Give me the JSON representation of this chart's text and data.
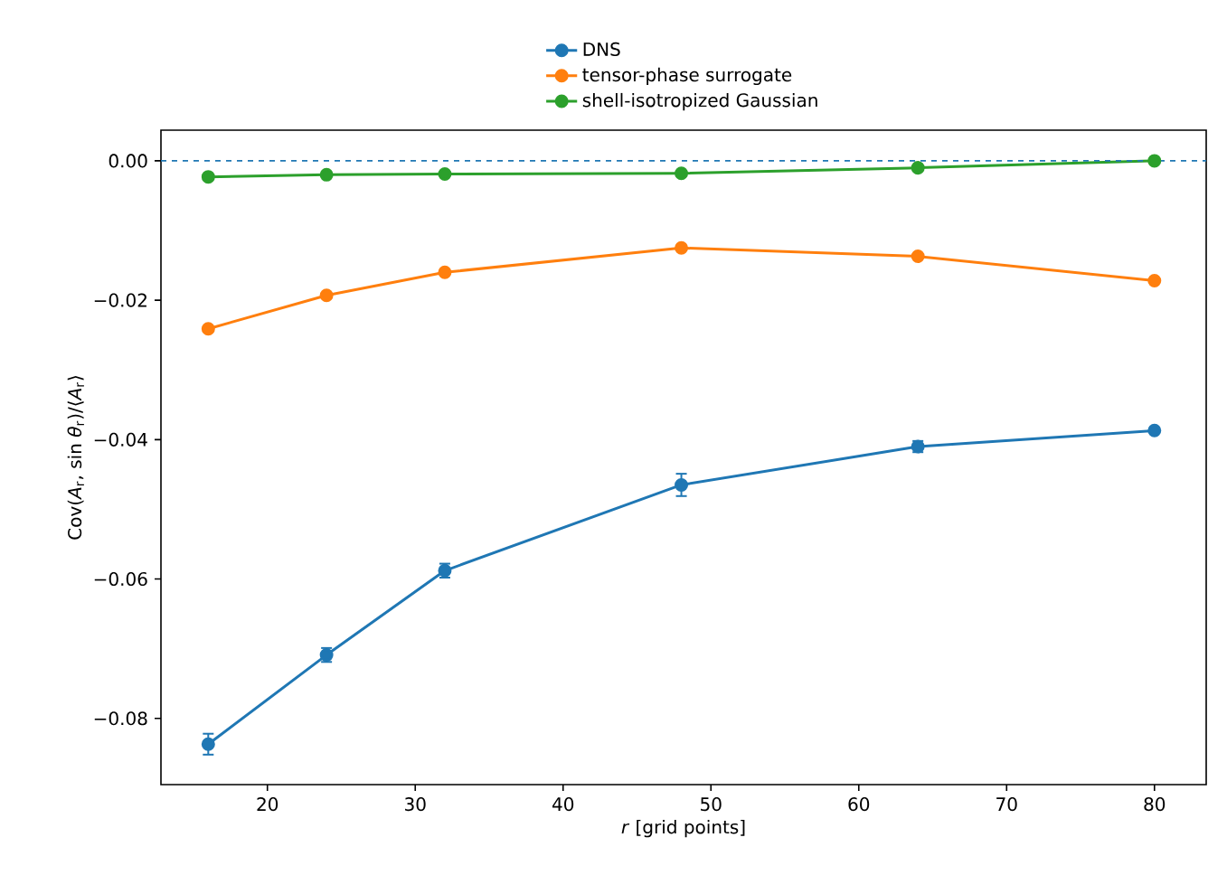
{
  "chart_data": {
    "type": "line",
    "xlabel": "*r* [grid points]",
    "ylabel": "Cov(*A*$_{r}$, sin *θ*$_{r}$)/⟨*A*$_{r}$⟩",
    "x": [
      16,
      24,
      32,
      48,
      64,
      80
    ],
    "series": [
      {
        "name": "DNS",
        "color": "#1f77b4",
        "values": [
          -0.0837,
          -0.0709,
          -0.0588,
          -0.0465,
          -0.041,
          -0.0387
        ],
        "errors": [
          0.0015,
          0.001,
          0.001,
          0.0016,
          0.0008,
          null
        ]
      },
      {
        "name": "tensor-phase surrogate",
        "color": "#ff7f0e",
        "values": [
          -0.0241,
          -0.0193,
          -0.016,
          -0.0125,
          -0.0137,
          -0.0172
        ]
      },
      {
        "name": "shell-isotropized Gaussian",
        "color": "#2ca02c",
        "values": [
          -0.0023,
          -0.002,
          -0.0019,
          -0.0018,
          -0.001,
          0.0
        ]
      }
    ],
    "xlim": [
      12.8,
      83.5
    ],
    "ylim": [
      -0.0895,
      0.0044
    ],
    "xticks": [
      20,
      30,
      40,
      50,
      60,
      70,
      80
    ],
    "yticks": [
      {
        "value": -0.08,
        "label": "−0.08"
      },
      {
        "value": -0.06,
        "label": "−0.06"
      },
      {
        "value": -0.04,
        "label": "−0.04"
      },
      {
        "value": -0.02,
        "label": "−0.02"
      },
      {
        "value": 0,
        "label": "0.00"
      }
    ],
    "ref_lines": [
      {
        "axis": "y",
        "value": 0,
        "color": "#1f77b4",
        "line_style": "dashed"
      }
    ],
    "marker": "circle",
    "line_style": "solid",
    "legend": "top",
    "grid": false
  }
}
